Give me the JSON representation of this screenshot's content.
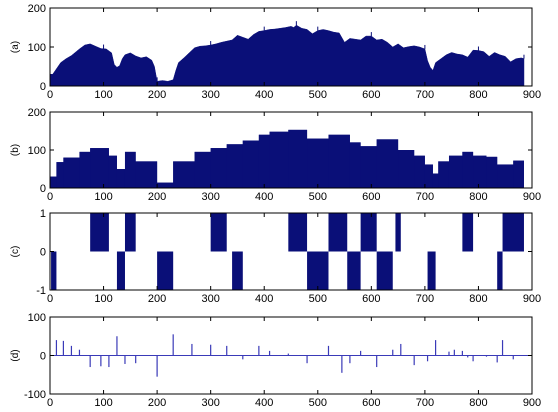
{
  "chart_data": [
    {
      "panel_label": "(a)",
      "type": "area",
      "fill_color": "#0a0f78",
      "xlim": [
        0,
        900
      ],
      "ylim": [
        0,
        200
      ],
      "xticks": [
        0,
        100,
        200,
        300,
        400,
        500,
        600,
        700,
        800,
        900
      ],
      "yticks": [
        0,
        100,
        200
      ],
      "x": [
        0,
        5,
        10,
        20,
        30,
        40,
        55,
        65,
        75,
        85,
        95,
        105,
        115,
        120,
        125,
        130,
        135,
        140,
        150,
        160,
        170,
        180,
        190,
        195,
        200,
        210,
        220,
        230,
        235,
        240,
        250,
        260,
        270,
        280,
        290,
        300,
        310,
        320,
        330,
        340,
        350,
        360,
        370,
        380,
        390,
        400,
        410,
        420,
        430,
        440,
        450,
        455,
        460,
        465,
        470,
        480,
        490,
        500,
        510,
        520,
        530,
        540,
        550,
        560,
        570,
        580,
        590,
        600,
        610,
        620,
        630,
        640,
        650,
        660,
        670,
        680,
        690,
        700,
        705,
        710,
        715,
        720,
        730,
        740,
        750,
        760,
        770,
        780,
        790,
        800,
        810,
        820,
        830,
        840,
        850,
        860,
        870,
        880,
        885
      ],
      "y": [
        30,
        30,
        40,
        60,
        70,
        78,
        95,
        105,
        108,
        102,
        96,
        95,
        85,
        55,
        48,
        52,
        70,
        80,
        85,
        77,
        72,
        75,
        66,
        50,
        12,
        14,
        12,
        16,
        40,
        60,
        72,
        85,
        98,
        102,
        103,
        105,
        108,
        112,
        115,
        118,
        130,
        125,
        120,
        132,
        140,
        142,
        145,
        146,
        148,
        150,
        153,
        150,
        156,
        152,
        148,
        145,
        134,
        142,
        145,
        142,
        138,
        136,
        112,
        122,
        120,
        118,
        128,
        128,
        118,
        120,
        112,
        100,
        108,
        98,
        101,
        103,
        100,
        95,
        65,
        48,
        40,
        60,
        70,
        80,
        86,
        82,
        80,
        74,
        92,
        91,
        88,
        76,
        86,
        80,
        76,
        62,
        70,
        72,
        70
      ],
      "samples": [
        {
          "x": 0,
          "y": 30
        },
        {
          "x": 100,
          "y": 96
        },
        {
          "x": 200,
          "y": 12
        },
        {
          "x": 300,
          "y": 105
        },
        {
          "x": 400,
          "y": 142
        },
        {
          "x": 460,
          "y": 156
        },
        {
          "x": 500,
          "y": 142
        },
        {
          "x": 600,
          "y": 128
        },
        {
          "x": 700,
          "y": 95
        },
        {
          "x": 800,
          "y": 91
        },
        {
          "x": 885,
          "y": 70
        }
      ]
    },
    {
      "panel_label": "(b)",
      "type": "area",
      "style": "step",
      "fill_color": "#0a0f78",
      "xlim": [
        0,
        900
      ],
      "ylim": [
        0,
        200
      ],
      "xticks": [
        0,
        100,
        200,
        300,
        400,
        500,
        600,
        700,
        800,
        900
      ],
      "yticks": [
        0,
        100,
        200
      ],
      "steps": [
        {
          "x0": 0,
          "x1": 12,
          "y": 30
        },
        {
          "x0": 12,
          "x1": 25,
          "y": 68
        },
        {
          "x0": 25,
          "x1": 55,
          "y": 80
        },
        {
          "x0": 55,
          "x1": 75,
          "y": 95
        },
        {
          "x0": 75,
          "x1": 110,
          "y": 105
        },
        {
          "x0": 110,
          "x1": 125,
          "y": 85
        },
        {
          "x0": 125,
          "x1": 140,
          "y": 50
        },
        {
          "x0": 140,
          "x1": 160,
          "y": 95
        },
        {
          "x0": 160,
          "x1": 200,
          "y": 70
        },
        {
          "x0": 200,
          "x1": 230,
          "y": 14
        },
        {
          "x0": 230,
          "x1": 270,
          "y": 70
        },
        {
          "x0": 270,
          "x1": 300,
          "y": 95
        },
        {
          "x0": 300,
          "x1": 330,
          "y": 105
        },
        {
          "x0": 330,
          "x1": 360,
          "y": 115
        },
        {
          "x0": 360,
          "x1": 390,
          "y": 125
        },
        {
          "x0": 390,
          "x1": 410,
          "y": 140
        },
        {
          "x0": 410,
          "x1": 445,
          "y": 148
        },
        {
          "x0": 445,
          "x1": 480,
          "y": 153
        },
        {
          "x0": 480,
          "x1": 520,
          "y": 130
        },
        {
          "x0": 520,
          "x1": 560,
          "y": 140
        },
        {
          "x0": 560,
          "x1": 580,
          "y": 120
        },
        {
          "x0": 580,
          "x1": 610,
          "y": 110
        },
        {
          "x0": 610,
          "x1": 650,
          "y": 128
        },
        {
          "x0": 650,
          "x1": 680,
          "y": 100
        },
        {
          "x0": 680,
          "x1": 700,
          "y": 85
        },
        {
          "x0": 700,
          "x1": 715,
          "y": 62
        },
        {
          "x0": 715,
          "x1": 725,
          "y": 38
        },
        {
          "x0": 725,
          "x1": 745,
          "y": 70
        },
        {
          "x0": 745,
          "x1": 770,
          "y": 85
        },
        {
          "x0": 770,
          "x1": 790,
          "y": 95
        },
        {
          "x0": 790,
          "x1": 815,
          "y": 85
        },
        {
          "x0": 815,
          "x1": 835,
          "y": 82
        },
        {
          "x0": 835,
          "x1": 865,
          "y": 62
        },
        {
          "x0": 865,
          "x1": 885,
          "y": 72
        }
      ]
    },
    {
      "panel_label": "(c)",
      "type": "bar",
      "fill_color": "#0a0f78",
      "xlim": [
        0,
        900
      ],
      "ylim": [
        -1,
        1
      ],
      "xticks": [
        0,
        100,
        200,
        300,
        400,
        500,
        600,
        700,
        800,
        900
      ],
      "yticks": [
        -1,
        0,
        1
      ],
      "blocks": [
        {
          "x0": 2,
          "x1": 12,
          "value": -1
        },
        {
          "x0": 75,
          "x1": 110,
          "value": 1
        },
        {
          "x0": 125,
          "x1": 140,
          "value": -1
        },
        {
          "x0": 140,
          "x1": 160,
          "value": 1
        },
        {
          "x0": 200,
          "x1": 230,
          "value": -1
        },
        {
          "x0": 300,
          "x1": 330,
          "value": 1
        },
        {
          "x0": 340,
          "x1": 360,
          "value": -1
        },
        {
          "x0": 445,
          "x1": 480,
          "value": 1
        },
        {
          "x0": 480,
          "x1": 520,
          "value": -1
        },
        {
          "x0": 520,
          "x1": 555,
          "value": 1
        },
        {
          "x0": 555,
          "x1": 580,
          "value": -1
        },
        {
          "x0": 580,
          "x1": 610,
          "value": 1
        },
        {
          "x0": 610,
          "x1": 640,
          "value": -1
        },
        {
          "x0": 645,
          "x1": 655,
          "value": 1
        },
        {
          "x0": 705,
          "x1": 720,
          "value": -1
        },
        {
          "x0": 770,
          "x1": 790,
          "value": 1
        },
        {
          "x0": 835,
          "x1": 845,
          "value": -1
        },
        {
          "x0": 845,
          "x1": 885,
          "value": 1
        }
      ]
    },
    {
      "panel_label": "(d)",
      "type": "bar",
      "style": "stem",
      "color": "#3a3ab8",
      "xlim": [
        0,
        900
      ],
      "ylim": [
        -100,
        100
      ],
      "xticks": [
        0,
        100,
        200,
        300,
        400,
        500,
        600,
        700,
        800,
        900
      ],
      "yticks": [
        -100,
        0,
        100
      ],
      "x": [
        12,
        25,
        40,
        55,
        75,
        95,
        110,
        125,
        140,
        160,
        200,
        230,
        265,
        300,
        330,
        360,
        390,
        410,
        445,
        480,
        520,
        545,
        560,
        580,
        610,
        640,
        655,
        680,
        705,
        720,
        745,
        755,
        770,
        780,
        790,
        815,
        835,
        845,
        865
      ],
      "y": [
        40,
        38,
        25,
        15,
        -30,
        -28,
        -30,
        50,
        -22,
        -20,
        -55,
        55,
        30,
        28,
        25,
        -10,
        25,
        12,
        5,
        -20,
        25,
        -45,
        -20,
        12,
        -30,
        15,
        30,
        -25,
        -15,
        40,
        10,
        15,
        12,
        -5,
        -15,
        -3,
        -18,
        40,
        -10
      ]
    }
  ]
}
